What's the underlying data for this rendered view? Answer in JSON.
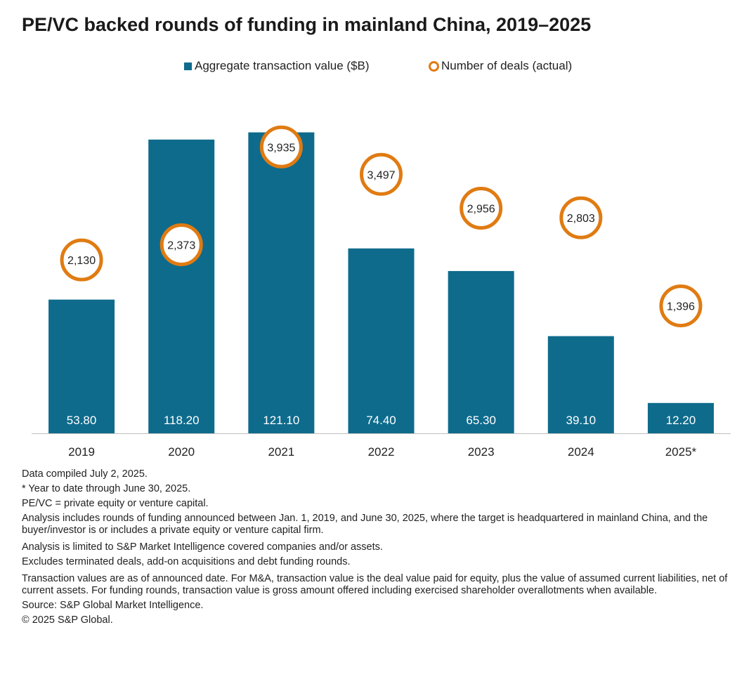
{
  "title": "PE/VC backed rounds of funding in mainland China, 2019–2025",
  "legend": {
    "bars_label": "Aggregate transaction value ($B)",
    "deals_label": "Number of deals (actual)"
  },
  "colors": {
    "bar": "#0e6b8c",
    "deal_circle": "#e07b12",
    "bar_label_text": "#ffffff",
    "axis": "#bfbfbf"
  },
  "chart_data": {
    "type": "bar",
    "categories": [
      "2019",
      "2020",
      "2021",
      "2022",
      "2023",
      "2024",
      "2025*"
    ],
    "series": [
      {
        "name": "Aggregate transaction value ($B)",
        "type": "bar",
        "values": [
          53.8,
          118.2,
          121.1,
          74.4,
          65.3,
          39.1,
          12.2
        ],
        "labels": [
          "53.80",
          "118.20",
          "121.10",
          "74.40",
          "65.30",
          "39.10",
          "12.20"
        ]
      },
      {
        "name": "Number of deals (actual)",
        "type": "marker",
        "values": [
          2130,
          2373,
          3935,
          3497,
          2956,
          2803,
          1396
        ],
        "labels": [
          "2,130",
          "2,373",
          "3,935",
          "3,497",
          "2,956",
          "2,803",
          "1,396"
        ]
      }
    ],
    "ylim_bars": [
      0,
      130
    ],
    "ylim_deals": [
      0,
      4600
    ],
    "grid": false,
    "legend_position": "top-center"
  },
  "notes": [
    "Data compiled July 2, 2025.",
    "* Year to date through June 30, 2025.",
    "PE/VC = private equity or venture capital.",
    "Analysis includes rounds of funding announced between Jan. 1, 2019, and June 30, 2025, where the target is headquartered in mainland China, and the buyer/investor is or includes a private equity or venture capital firm.",
    "Analysis is limited to S&P Market Intelligence covered companies and/or assets.",
    "Excludes terminated deals, add-on acquisitions and debt funding rounds.",
    "Transaction values are as of announced date. For M&A, transaction value is the deal value paid for equity, plus the value of assumed current liabilities, net of current assets. For funding rounds, transaction value is gross amount offered including exercised shareholder overallotments when available.",
    "Source: S&P Global Market Intelligence.",
    "© 2025 S&P Global."
  ]
}
